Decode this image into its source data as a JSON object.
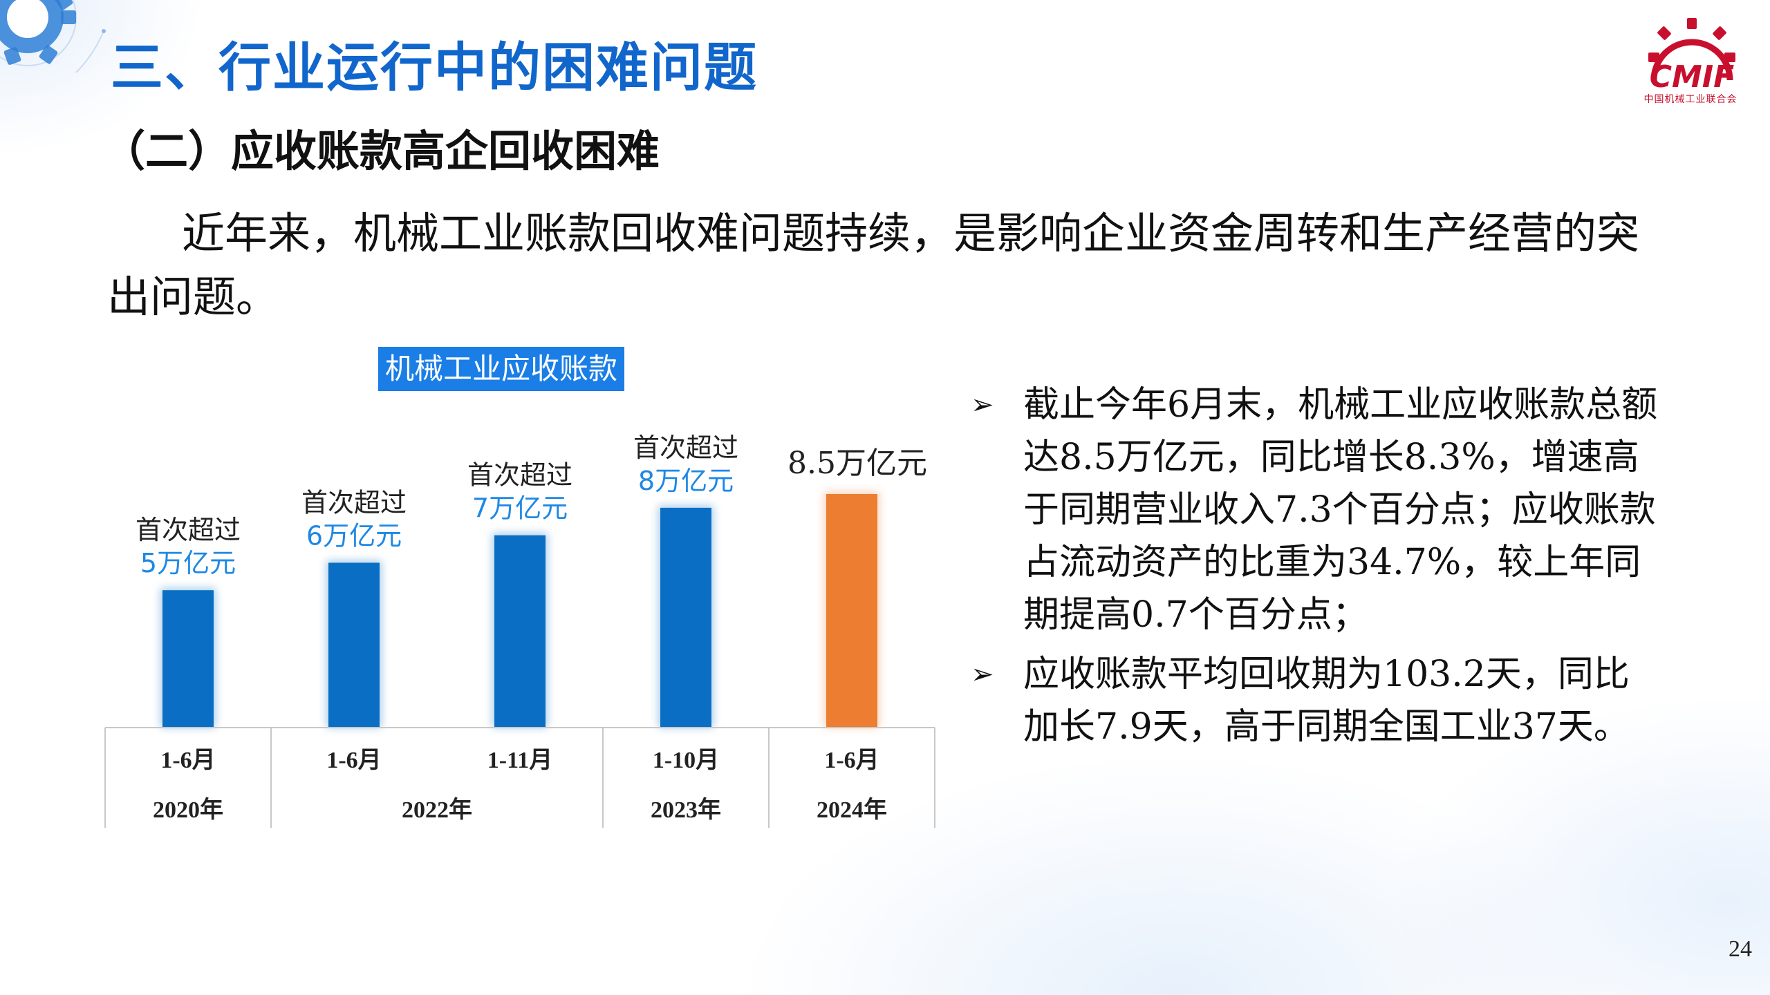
{
  "slide": {
    "title": "三、行业运行中的困难问题",
    "subtitle": "（二）应收账款高企回收困难",
    "intro": "近年来，机械工业账款回收难问题持续，是影响企业资金周转和生产经营的突出问题。",
    "page_number": "24"
  },
  "logo": {
    "text": "CMIF",
    "subtext": "中国机械工业联合会",
    "icon": "gear-icon",
    "color": "#c8102e"
  },
  "bullets": [
    {
      "icon": "arrow-bullet-icon",
      "text": "截止今年6月末，机械工业应收账款总额达8.5万亿元，同比增长8.3%，增速高于同期营业收入7.3个百分点；应收账款占流动资产的比重为34.7%，较上年同期提高0.7个百分点；"
    },
    {
      "icon": "arrow-bullet-icon",
      "text": "应收账款平均回收期为103.2天，同比加长7.9天，高于同期全国工业37天。"
    }
  ],
  "chart_data": {
    "type": "bar",
    "title": "机械工业应收账款",
    "unit": "万亿元",
    "categories": [
      "1-6月",
      "1-6月",
      "1-11月",
      "1-10月",
      "1-6月"
    ],
    "year_groups": [
      {
        "label": "2020年",
        "span": 1
      },
      {
        "label": "2022年",
        "span": 2
      },
      {
        "label": "2023年",
        "span": 1
      },
      {
        "label": "2024年",
        "span": 1
      }
    ],
    "values": [
      5,
      6,
      7,
      8,
      8.5
    ],
    "annotations": [
      {
        "line1": "首次超过",
        "line2": "5万亿元"
      },
      {
        "line1": "首次超过",
        "line2": "6万亿元"
      },
      {
        "line1": "首次超过",
        "line2": "7万亿元"
      },
      {
        "line1": "首次超过",
        "line2": "8万亿元"
      },
      {
        "line1": "",
        "line2": "8.5万亿元"
      }
    ],
    "colors": [
      "#0a6fc4",
      "#0a6fc4",
      "#0a6fc4",
      "#0a6fc4",
      "#ed7d31"
    ],
    "annotation_color": "#1e88e5",
    "ylim": [
      0,
      9
    ],
    "grid": false,
    "legend": "none"
  },
  "colors": {
    "title": "#1166cc",
    "bar_blue": "#0a6fc4",
    "bar_orange": "#ed7d31",
    "chart_title_bg": "#1a7ee6"
  }
}
